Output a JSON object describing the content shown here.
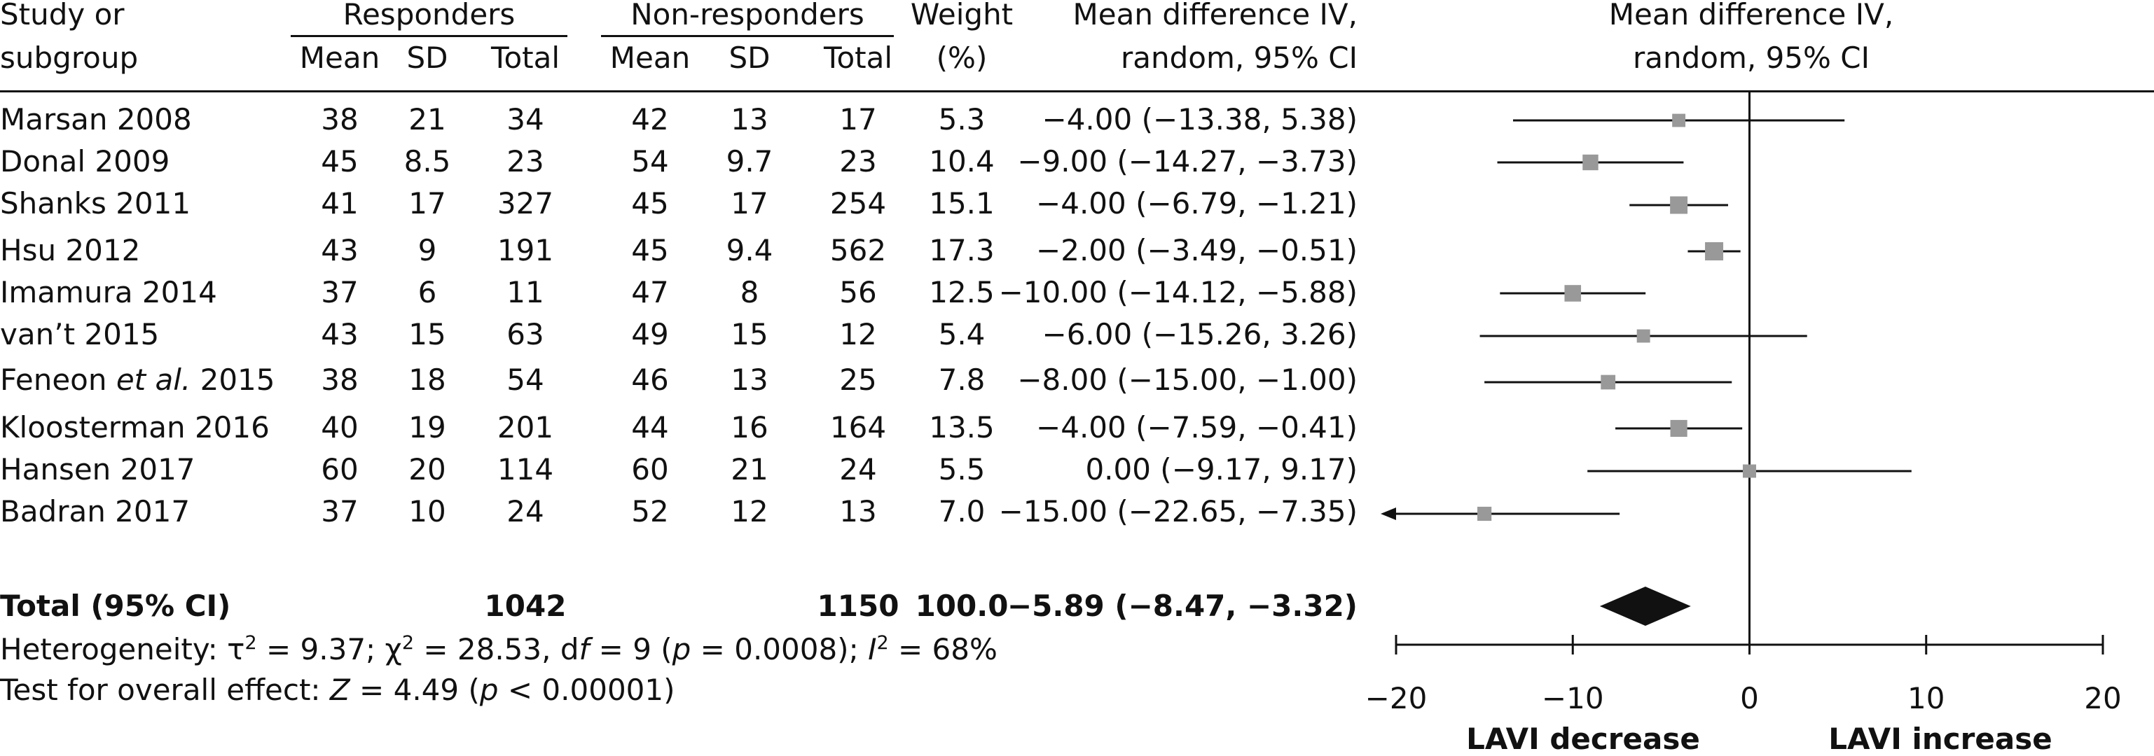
{
  "header": {
    "study_l1": "Study or",
    "study_l2": "subgroup",
    "responders": "Responders",
    "nonresponders": "Non-responders",
    "mean": "Mean",
    "sd": "SD",
    "total": "Total",
    "weight_l1": "Weight",
    "weight_l2": "(%)",
    "md_l1": "Mean difference IV,",
    "md_l2": "random, 95% CI",
    "plot_l1": "Mean difference IV,",
    "plot_l2": "random, 95% CI"
  },
  "studies": [
    {
      "name": "Marsan 2008",
      "name_italic": "",
      "name_suffix": "",
      "r_mean": "38",
      "r_sd": "21",
      "r_total": "34",
      "n_mean": "42",
      "n_sd": "13",
      "n_total": "17",
      "weight": "5.3",
      "ci_text": "−4.00 (−13.38, 5.38)"
    },
    {
      "name": "Donal 2009",
      "name_italic": "",
      "name_suffix": "",
      "r_mean": "45",
      "r_sd": "8.5",
      "r_total": "23",
      "n_mean": "54",
      "n_sd": "9.7",
      "n_total": "23",
      "weight": "10.4",
      "ci_text": "−9.00 (−14.27, −3.73)"
    },
    {
      "name": "Shanks 2011",
      "name_italic": "",
      "name_suffix": "",
      "r_mean": "41",
      "r_sd": "17",
      "r_total": "327",
      "n_mean": "45",
      "n_sd": "17",
      "n_total": "254",
      "weight": "15.1",
      "ci_text": "−4.00 (−6.79, −1.21)"
    },
    {
      "name": "Hsu 2012",
      "name_italic": "",
      "name_suffix": "",
      "r_mean": "43",
      "r_sd": "9",
      "r_total": "191",
      "n_mean": "45",
      "n_sd": "9.4",
      "n_total": "562",
      "weight": "17.3",
      "ci_text": "−2.00 (−3.49, −0.51)"
    },
    {
      "name": "Imamura 2014",
      "name_italic": "",
      "name_suffix": "",
      "r_mean": "37",
      "r_sd": "6",
      "r_total": "11",
      "n_mean": "47",
      "n_sd": "8",
      "n_total": "56",
      "weight": "12.5",
      "ci_text": "−10.00 (−14.12, −5.88)"
    },
    {
      "name": "van’t 2015",
      "name_italic": "",
      "name_suffix": "",
      "r_mean": "43",
      "r_sd": "15",
      "r_total": "63",
      "n_mean": "49",
      "n_sd": "15",
      "n_total": "12",
      "weight": "5.4",
      "ci_text": "−6.00 (−15.26, 3.26)"
    },
    {
      "name": "Feneon ",
      "name_italic": "et al.",
      "name_suffix": " 2015",
      "r_mean": "38",
      "r_sd": "18",
      "r_total": "54",
      "n_mean": "46",
      "n_sd": "13",
      "n_total": "25",
      "weight": "7.8",
      "ci_text": "−8.00 (−15.00, −1.00)"
    },
    {
      "name": "Kloosterman 2016",
      "name_italic": "",
      "name_suffix": "",
      "r_mean": "40",
      "r_sd": "19",
      "r_total": "201",
      "n_mean": "44",
      "n_sd": "16",
      "n_total": "164",
      "weight": "13.5",
      "ci_text": "−4.00 (−7.59, −0.41)"
    },
    {
      "name": "Hansen 2017",
      "name_italic": "",
      "name_suffix": "",
      "r_mean": "60",
      "r_sd": "20",
      "r_total": "114",
      "n_mean": "60",
      "n_sd": "21",
      "n_total": "24",
      "weight": "5.5",
      "ci_text": "0.00 (−9.17, 9.17)"
    },
    {
      "name": "Badran 2017",
      "name_italic": "",
      "name_suffix": "",
      "r_mean": "37",
      "r_sd": "10",
      "r_total": "24",
      "n_mean": "52",
      "n_sd": "12",
      "n_total": "13",
      "weight": "7.0",
      "ci_text": "−15.00 (−22.65, −7.35)"
    }
  ],
  "total": {
    "label": "Total (95% CI)",
    "r_total": "1042",
    "n_total": "1150",
    "weight": "100.0",
    "ci_text": "−5.89 (−8.47, −3.32)"
  },
  "heterogeneity": {
    "p1": "Heterogeneity: τ",
    "sup1": "2",
    "p2": " = 9.37; χ",
    "sup2": "2",
    "p3": " = 28.53, d",
    "i1": "f",
    "p4": " = 9 (",
    "i2": "p",
    "p5": " = 0.0008); ",
    "i3": "I",
    "sup3": "2",
    "p6": " = 68%"
  },
  "overall": {
    "p1": "Test for overall effect: ",
    "i1": "Z",
    "p2": " = 4.49 (",
    "i2": "p",
    "p3": " < 0.00001)"
  },
  "axis": {
    "left_label": "LAVI decrease",
    "right_label": "LAVI increase"
  },
  "colors": {
    "marker": "#999999",
    "ink": "#111111"
  },
  "chart_data": {
    "type": "forest",
    "xlim": [
      -20,
      20
    ],
    "ticks": [
      -20,
      -10,
      0,
      10,
      20
    ],
    "tick_labels": [
      "−20",
      "−10",
      "0",
      "10",
      "20"
    ],
    "xlabel_left": "LAVI decrease",
    "xlabel_right": "LAVI increase",
    "studies": [
      {
        "est": -4.0,
        "lo": -13.38,
        "hi": 5.38,
        "weight": 5.3
      },
      {
        "est": -9.0,
        "lo": -14.27,
        "hi": -3.73,
        "weight": 10.4
      },
      {
        "est": -4.0,
        "lo": -6.79,
        "hi": -1.21,
        "weight": 15.1
      },
      {
        "est": -2.0,
        "lo": -3.49,
        "hi": -0.51,
        "weight": 17.3
      },
      {
        "est": -10.0,
        "lo": -14.12,
        "hi": -5.88,
        "weight": 12.5
      },
      {
        "est": -6.0,
        "lo": -15.26,
        "hi": 3.26,
        "weight": 5.4
      },
      {
        "est": -8.0,
        "lo": -15.0,
        "hi": -1.0,
        "weight": 7.8
      },
      {
        "est": -4.0,
        "lo": -7.59,
        "hi": -0.41,
        "weight": 13.5
      },
      {
        "est": 0.0,
        "lo": -9.17,
        "hi": 9.17,
        "weight": 5.5
      },
      {
        "est": -15.0,
        "lo": -22.65,
        "hi": -7.35,
        "weight": 7.0
      }
    ],
    "pooled": {
      "est": -5.89,
      "lo": -8.47,
      "hi": -3.32
    }
  }
}
